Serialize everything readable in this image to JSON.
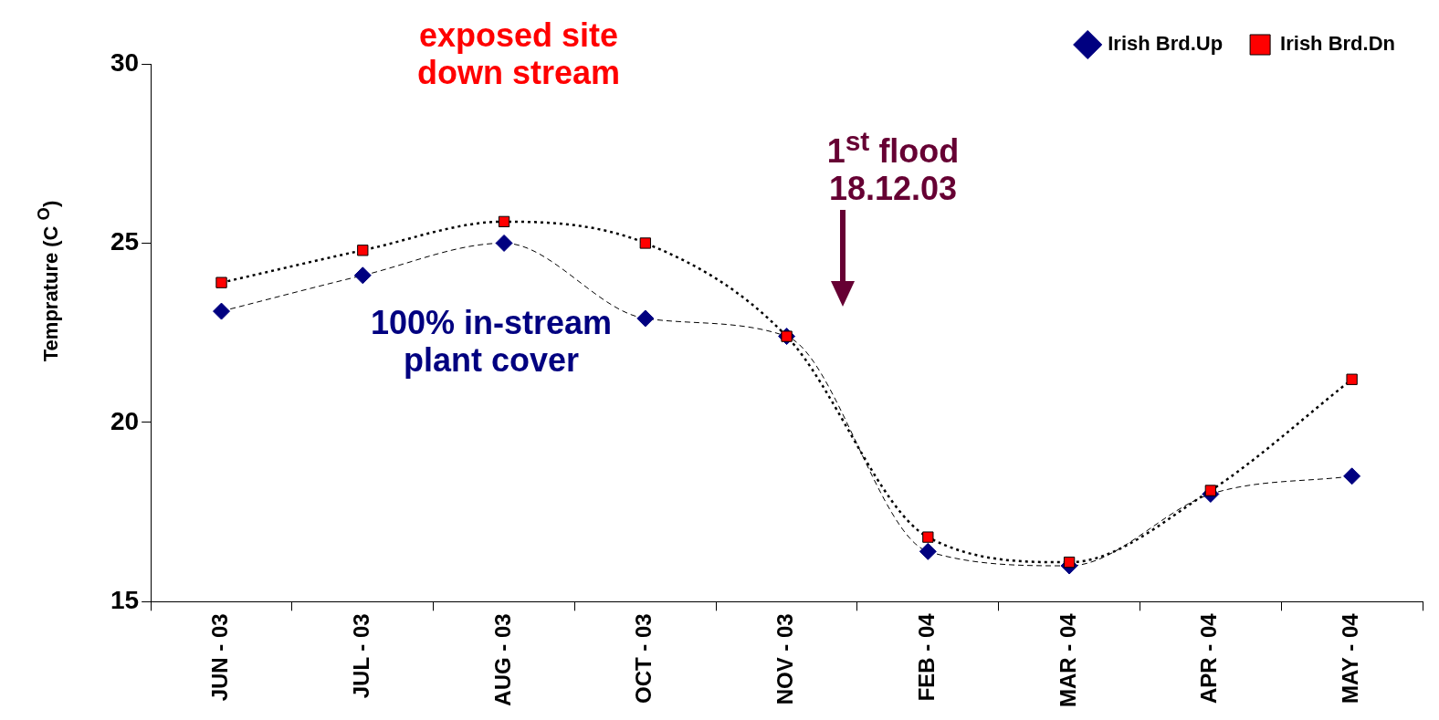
{
  "chart_data": {
    "type": "line",
    "ylabel": "Temprature (C $^{O}$)",
    "categories": [
      "JUN - 03",
      "JUL - 03",
      "AUG - 03",
      "OCT - 03",
      "NOV - 03",
      "FEB - 04",
      "MAR - 04",
      "APR - 04",
      "MAY - 04"
    ],
    "series": [
      {
        "name": "Irish Brd.Up",
        "color": "#000080",
        "marker": "diamond",
        "line_style": "dashed",
        "values": [
          23.1,
          24.1,
          25.0,
          22.9,
          22.4,
          16.4,
          16.0,
          18.0,
          18.5
        ]
      },
      {
        "name": "Irish Brd.Dn",
        "color": "#ff0000",
        "marker": "square",
        "line_style": "dotted",
        "values": [
          23.9,
          24.8,
          25.6,
          25.0,
          22.4,
          16.8,
          16.1,
          18.1,
          21.2
        ]
      }
    ],
    "ylim": [
      15,
      30
    ],
    "yticks": [
      15,
      20,
      25,
      30
    ],
    "grid": false,
    "legend": "top right",
    "annotations": [
      "exposed site down stream",
      "100% in-stream plant cover",
      "1$^{st}$ flood 18.12.03"
    ]
  }
}
